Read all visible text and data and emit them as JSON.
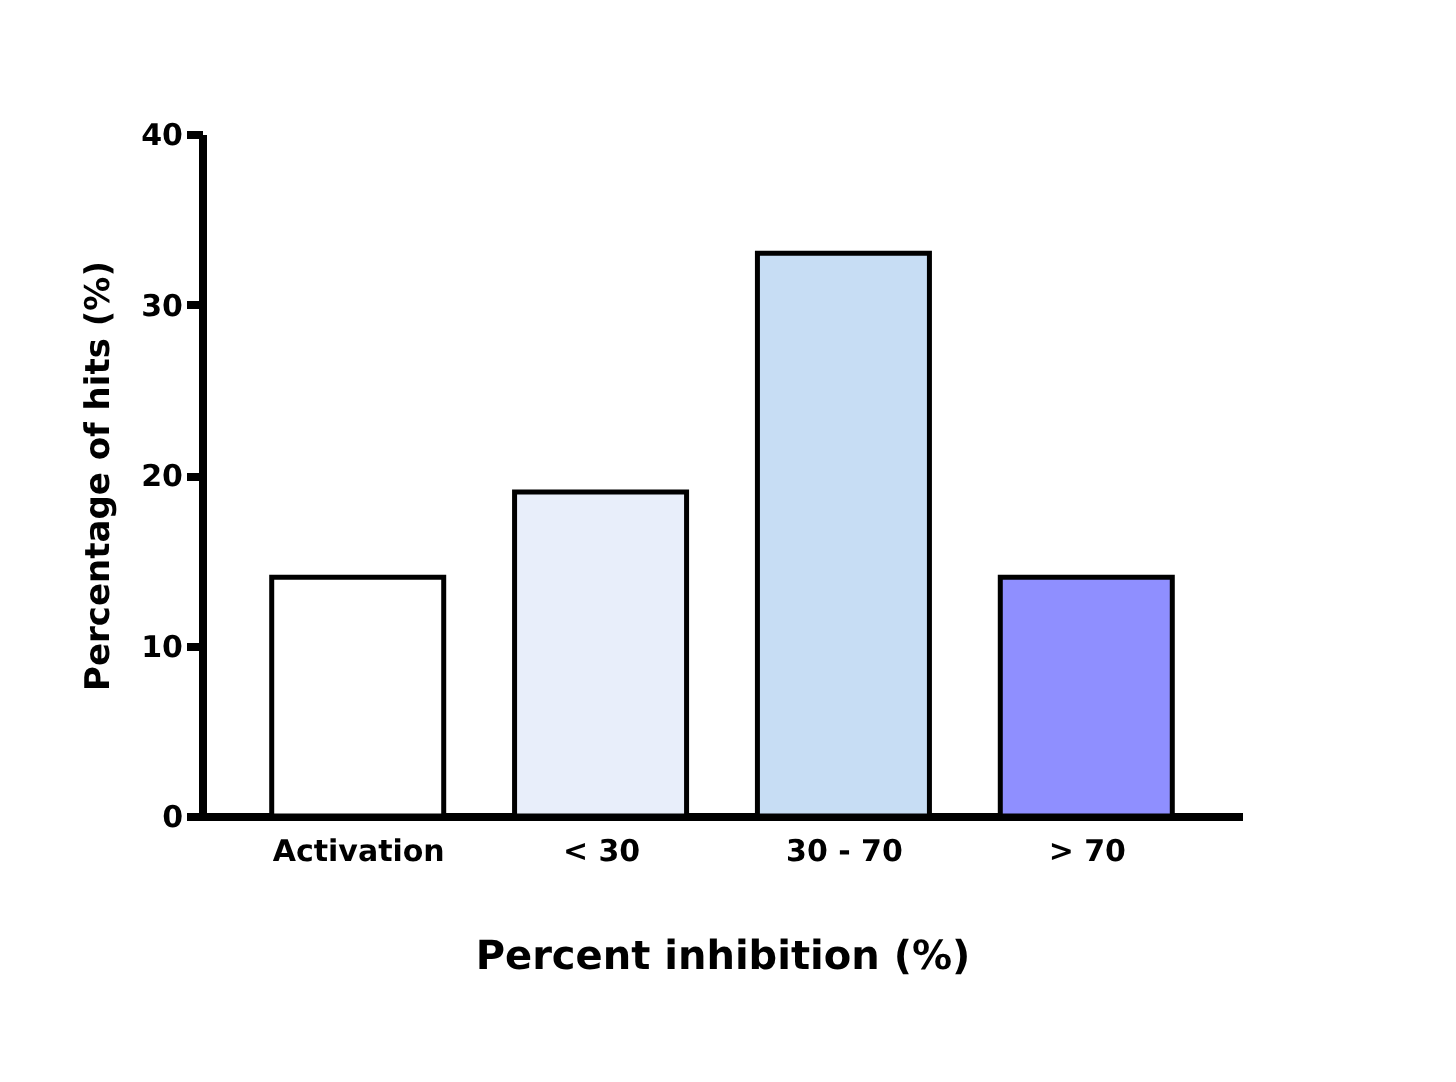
{
  "chart_data": {
    "type": "bar",
    "xlabel": "Percent inhibition (%)",
    "ylabel": "Percentage of hits (%)",
    "categories": [
      "Activation",
      "< 30",
      "30 - 70",
      "> 70"
    ],
    "values": [
      14,
      19,
      33,
      14
    ],
    "colors": [
      "#ffffff",
      "#e8eefa",
      "#c7ddf4",
      "#8f8fff"
    ],
    "ylim": [
      0,
      40
    ],
    "yticks": [
      0,
      10,
      20,
      30,
      40
    ],
    "grid": false
  }
}
